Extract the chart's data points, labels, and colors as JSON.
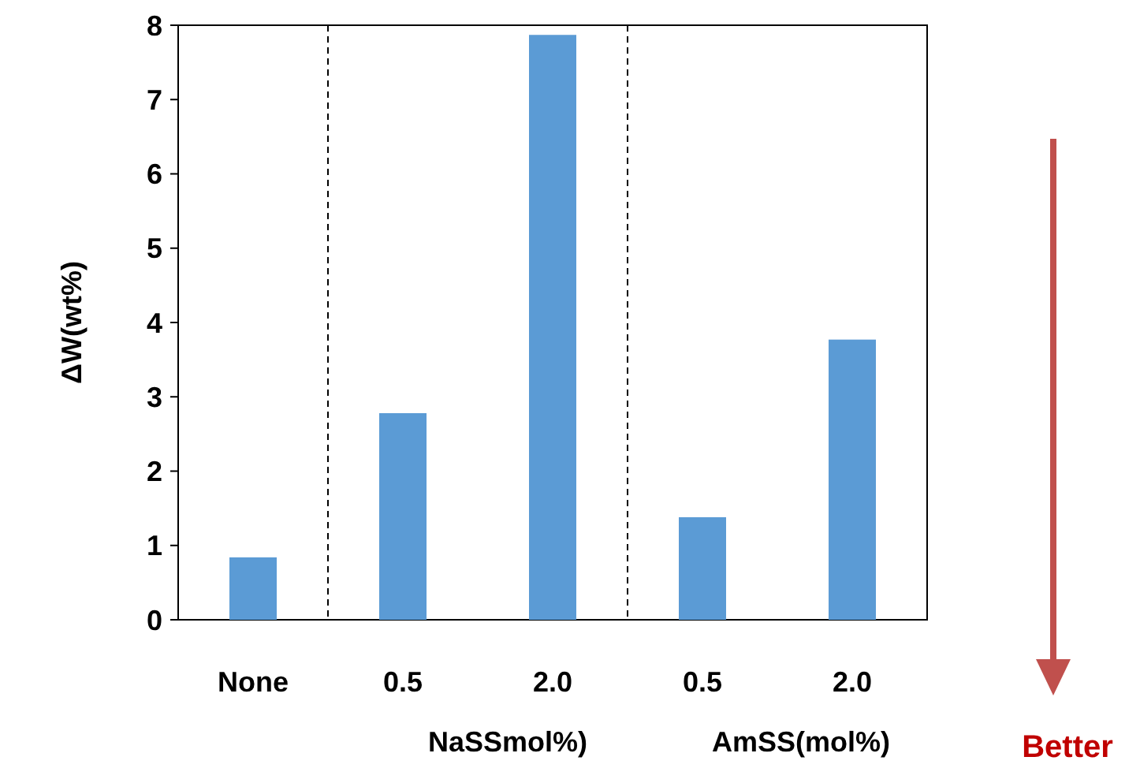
{
  "chart_data": {
    "type": "bar",
    "ylabel": "ΔW(wt%)",
    "categories": [
      "None",
      "0.5",
      "2.0",
      "0.5",
      "2.0"
    ],
    "values": [
      0.84,
      2.78,
      7.87,
      1.38,
      3.77
    ],
    "color": "#5b9bd5",
    "ylim": [
      0,
      8
    ],
    "yticks": [
      0,
      1,
      2,
      3,
      4,
      5,
      6,
      7,
      8
    ],
    "grid": false,
    "annotations": [
      {
        "text": "NaSSmol%)"
      },
      {
        "text": "AmSS(mol%)"
      },
      {
        "text": "Better"
      }
    ]
  }
}
